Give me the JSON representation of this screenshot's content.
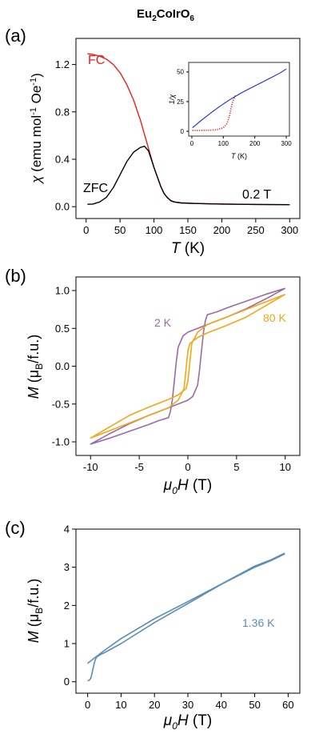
{
  "figure_title": {
    "main": "Eu",
    "sub1": "2",
    "mid": "CoIrO",
    "sub2": "6"
  },
  "chart_data": [
    {
      "panel": "(a)",
      "type": "line",
      "xlabel": {
        "italic": "T",
        "rest": " (K)"
      },
      "ylabel": {
        "italic": "χ",
        "rest": " (emu mol",
        "sup1": "-1",
        "mid": " Oe",
        "sup2": "-1",
        "end": ")"
      },
      "xlim": [
        -15,
        315
      ],
      "ylim": [
        -0.1,
        1.42
      ],
      "xticks": [
        0,
        50,
        100,
        150,
        200,
        250,
        300
      ],
      "xtick_labels": [
        "0",
        "50",
        "100",
        "150",
        "200",
        "250",
        "300"
      ],
      "yticks": [
        0.0,
        0.4,
        0.8,
        1.2
      ],
      "ytick_labels": [
        "0.0",
        "0.4",
        "0.8",
        "1.2"
      ],
      "annotations": [
        {
          "id": "fc",
          "text": "FC",
          "color": "#e8201a"
        },
        {
          "id": "zfc",
          "text": "ZFC",
          "color": "#000000"
        },
        {
          "id": "field",
          "text": "0.2 T",
          "color": "#000000"
        }
      ],
      "series": [
        {
          "name": "FC",
          "color": "#e8201a",
          "x": [
            2,
            10,
            20,
            30,
            40,
            50,
            60,
            70,
            80,
            90,
            100,
            110,
            115,
            120,
            125,
            130,
            140,
            160,
            200,
            250,
            300
          ],
          "y": [
            1.29,
            1.285,
            1.27,
            1.245,
            1.2,
            1.13,
            1.03,
            0.9,
            0.73,
            0.53,
            0.33,
            0.17,
            0.11,
            0.075,
            0.05,
            0.04,
            0.032,
            0.027,
            0.022,
            0.019,
            0.017
          ]
        },
        {
          "name": "ZFC",
          "color": "#000000",
          "x": [
            2,
            10,
            20,
            30,
            40,
            50,
            60,
            70,
            80,
            86,
            92,
            100,
            110,
            115,
            120,
            125,
            130,
            140,
            160,
            200,
            250,
            300
          ],
          "y": [
            0.02,
            0.022,
            0.04,
            0.08,
            0.16,
            0.27,
            0.38,
            0.46,
            0.5,
            0.51,
            0.47,
            0.33,
            0.17,
            0.11,
            0.075,
            0.05,
            0.04,
            0.032,
            0.027,
            0.022,
            0.019,
            0.017
          ]
        }
      ],
      "inset": {
        "type": "line",
        "xlabel": {
          "italic": "T",
          "rest": " (K)"
        },
        "ylabel": "1/χ",
        "xlim": [
          -10,
          310
        ],
        "ylim": [
          -4,
          58
        ],
        "xticks": [
          0,
          100,
          200,
          300
        ],
        "xtick_labels": [
          "0",
          "100",
          "200",
          "300"
        ],
        "yticks": [
          0,
          25,
          50
        ],
        "ytick_labels": [
          "0",
          "25",
          "50"
        ],
        "series": [
          {
            "name": "1/χ",
            "color": "#e8201a",
            "style": "dotted",
            "x": [
              2,
              20,
              40,
              60,
              80,
              100,
              110,
              115,
              120,
              125,
              130,
              135,
              140
            ],
            "y": [
              0.78,
              0.79,
              0.83,
              0.97,
              1.37,
              3.0,
              5.9,
              9.1,
              13.3,
              20,
              25,
              28.5,
              31
            ]
          },
          {
            "name": "fit",
            "color": "#1e2ad6",
            "style": "solid",
            "x": [
              2,
              20,
              40,
              60,
              80,
              100,
              120,
              140,
              160,
              180,
              200,
              220,
              240,
              260,
              280,
              300
            ],
            "y": [
              3,
              7,
              11.3,
              15.4,
              19.3,
              23,
              26.5,
              29.7,
              32.7,
              35.5,
              38.2,
              40.9,
              43.6,
              46.3,
              49.1,
              52.5
            ]
          }
        ]
      }
    },
    {
      "panel": "(b)",
      "type": "line",
      "xlabel": {
        "italic": "μ",
        "sub": "0",
        "italic2": "H",
        "rest": " (T)"
      },
      "ylabel": {
        "italic": "M",
        "rest": " (μ",
        "sub": "B",
        "end": "/f.u.)"
      },
      "xlim": [
        -11.5,
        11.5
      ],
      "ylim": [
        -1.18,
        1.18
      ],
      "xticks": [
        -10,
        -5,
        0,
        5,
        10
      ],
      "xtick_labels": [
        "-10",
        "-5",
        "0",
        "5",
        "10"
      ],
      "yticks": [
        -1.0,
        -0.5,
        0.0,
        0.5,
        1.0
      ],
      "ytick_labels": [
        "-1.0",
        "-0.5",
        "0.0",
        "0.5",
        "1.0"
      ],
      "annotations": [
        {
          "id": "label2k",
          "text": "2 K",
          "color": "#9b6aa6"
        },
        {
          "id": "label80k",
          "text": "80 K",
          "color": "#f2a618"
        }
      ],
      "series": [
        {
          "name": "2 K",
          "color": "#9b6aa6",
          "x": [
            10,
            8,
            6,
            4,
            3,
            2.5,
            2,
            1.8,
            1.6,
            1.4,
            1.2,
            1.0,
            0.5,
            0,
            -1,
            -2,
            -4,
            -6,
            -8,
            -10,
            -8,
            -6,
            -4,
            -3,
            -2.5,
            -2,
            -1.8,
            -1.6,
            -1.4,
            -1.2,
            -1.0,
            -0.5,
            0,
            1,
            2,
            4,
            6,
            8,
            10
          ],
          "y": [
            1.03,
            0.95,
            0.86,
            0.77,
            0.72,
            0.7,
            0.68,
            0.6,
            0.45,
            0.2,
            -0.05,
            -0.25,
            -0.4,
            -0.45,
            -0.5,
            -0.55,
            -0.65,
            -0.76,
            -0.89,
            -1.03,
            -0.95,
            -0.86,
            -0.77,
            -0.72,
            -0.7,
            -0.68,
            -0.6,
            -0.45,
            -0.2,
            0.05,
            0.25,
            0.4,
            0.45,
            0.5,
            0.55,
            0.65,
            0.76,
            0.89,
            1.03
          ]
        },
        {
          "name": "80 K",
          "color": "#f2a618",
          "x": [
            10,
            6,
            3,
            2,
            1,
            0.6,
            0.4,
            0.2,
            0,
            -0.2,
            -1,
            -2,
            -4,
            -6,
            -10,
            -6,
            -3,
            -2,
            -1,
            -0.6,
            -0.4,
            -0.2,
            0,
            0.2,
            1,
            2,
            4,
            6,
            10
          ],
          "y": [
            0.95,
            0.75,
            0.6,
            0.55,
            0.45,
            0.35,
            0.3,
            0.05,
            -0.2,
            -0.3,
            -0.38,
            -0.44,
            -0.54,
            -0.65,
            -0.95,
            -0.75,
            -0.6,
            -0.55,
            -0.45,
            -0.35,
            -0.3,
            -0.05,
            0.2,
            0.3,
            0.38,
            0.44,
            0.54,
            0.65,
            0.95
          ]
        }
      ]
    },
    {
      "panel": "(c)",
      "type": "line",
      "xlabel": {
        "italic": "μ",
        "sub": "0",
        "italic2": "H",
        "rest": " (T)"
      },
      "ylabel": {
        "italic": "M",
        "rest": " (μ",
        "sub": "B",
        "end": "/f.u.)"
      },
      "xlim": [
        -3.5,
        63.5
      ],
      "ylim": [
        -0.3,
        4.0
      ],
      "xticks": [
        0,
        10,
        20,
        30,
        40,
        50,
        60
      ],
      "xtick_labels": [
        "0",
        "10",
        "20",
        "30",
        "40",
        "50",
        "60"
      ],
      "yticks": [
        0,
        1,
        2,
        3,
        4
      ],
      "ytick_labels": [
        "0",
        "1",
        "2",
        "3",
        "4"
      ],
      "annotations": [
        {
          "id": "label136k",
          "text": "1.36 K",
          "color": "#5b8db8"
        }
      ],
      "series": [
        {
          "name": "1.36 K up",
          "color": "#5b8db8",
          "x": [
            0,
            0.5,
            1,
            1.5,
            2,
            2.5,
            3,
            4,
            5,
            10,
            20,
            30,
            40,
            50,
            55,
            59
          ],
          "y": [
            0.02,
            0.04,
            0.1,
            0.3,
            0.5,
            0.62,
            0.67,
            0.72,
            0.76,
            1.0,
            1.55,
            2.05,
            2.55,
            3.0,
            3.18,
            3.35
          ]
        },
        {
          "name": "1.36 K down",
          "color": "#5b8db8",
          "x": [
            59,
            55,
            50,
            40,
            30,
            20,
            10,
            5,
            2,
            0
          ],
          "y": [
            3.37,
            3.2,
            3.03,
            2.56,
            2.1,
            1.65,
            1.13,
            0.82,
            0.62,
            0.48
          ]
        }
      ]
    }
  ]
}
